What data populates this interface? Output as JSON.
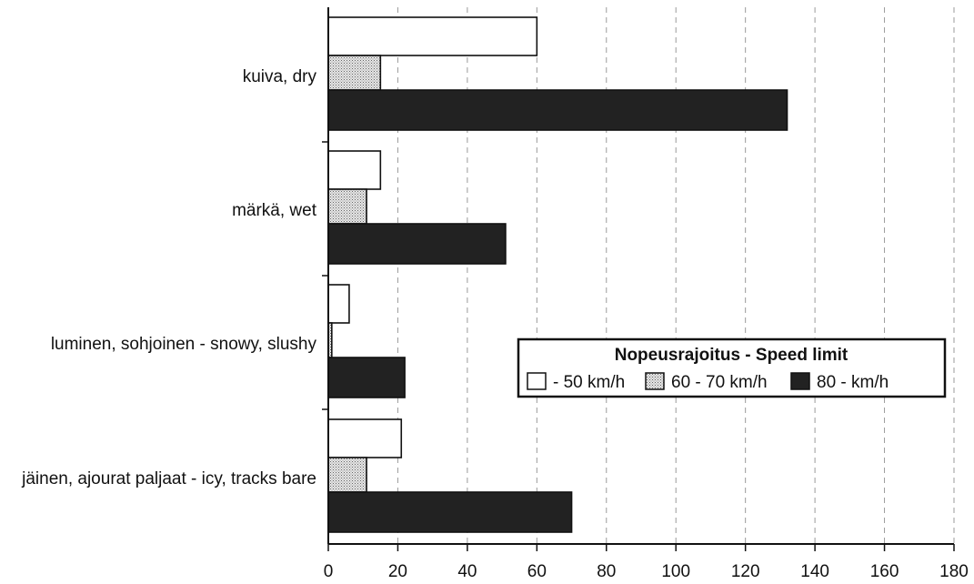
{
  "chart_data": {
    "type": "bar",
    "orientation": "horizontal",
    "title": "",
    "xlabel": "",
    "ylabel": "",
    "xlim": [
      0,
      180
    ],
    "x_ticks": [
      0,
      20,
      40,
      60,
      80,
      100,
      120,
      140,
      160,
      180
    ],
    "grid": "vertical dashed",
    "categories": [
      "kuiva, dry",
      "märkä, wet",
      "luminen, sohjoinen - snowy, slushy",
      "jäinen, ajourat paljaat - icy, tracks bare"
    ],
    "series": [
      {
        "name": "- 50 km/h",
        "fill": "white",
        "values": [
          60,
          15,
          6,
          21
        ]
      },
      {
        "name": "60 - 70 km/h",
        "fill": "dotted-gray",
        "values": [
          15,
          11,
          1,
          11
        ]
      },
      {
        "name": "80 - km/h",
        "fill": "black",
        "values": [
          132,
          51,
          22,
          70
        ]
      }
    ],
    "legend": {
      "title": "Nopeusrajoitus - Speed limit",
      "position": "center-right"
    }
  },
  "colors": {
    "bar_black": "#222222",
    "bar_white": "#ffffff",
    "bar_dotted_bg": "#e4e4e4",
    "axis": "#111111",
    "grid": "#999999"
  }
}
